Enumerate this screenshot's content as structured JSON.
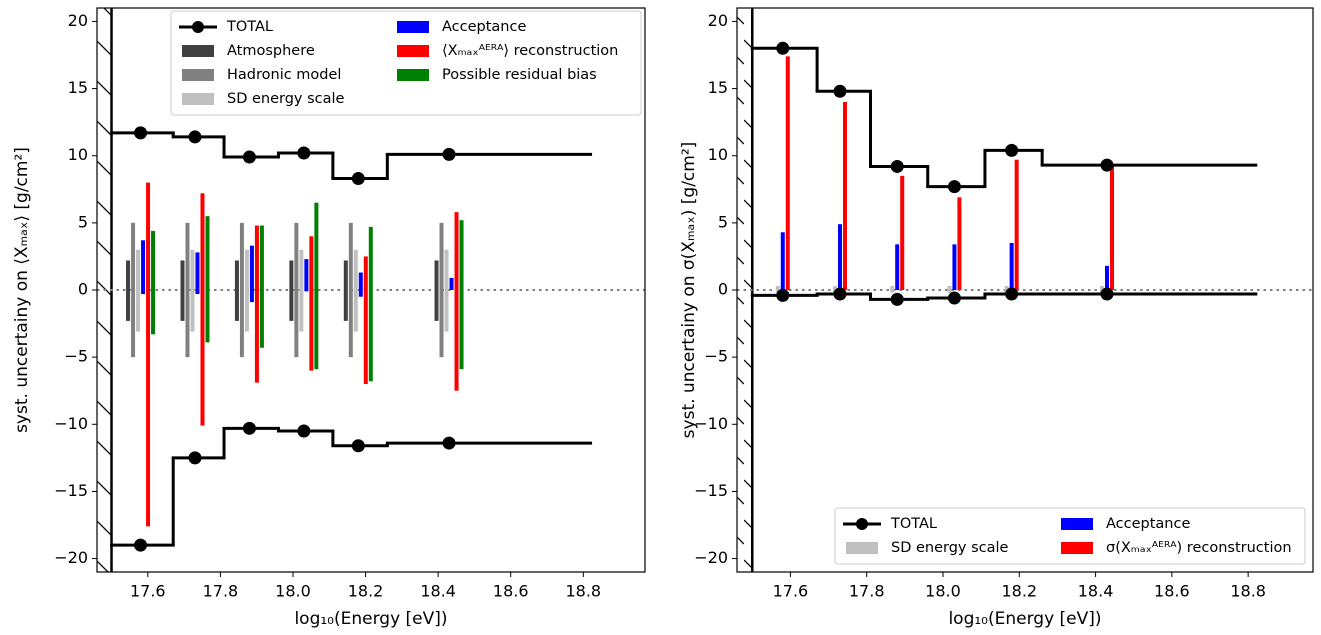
{
  "chart_data": [
    {
      "type": "step",
      "xlabel": "log₁₀(Energy [eV])",
      "ylabel": "syst. uncertainy on ⟨Xₘₐₓ⟩  [g/cm²]",
      "xlim": [
        17.46,
        18.97
      ],
      "ylim": [
        -21,
        21
      ],
      "xticks": [
        17.6,
        17.8,
        {
          "value": 18,
          "label": "18.0"
        },
        18.2,
        18.4,
        18.6,
        18.8
      ],
      "yticks": [
        {
          "value": -20,
          "label": "−20"
        },
        {
          "value": -15,
          "label": "−15"
        },
        {
          "value": -10,
          "label": "−10"
        },
        {
          "value": -5,
          "label": "−5"
        },
        0,
        5,
        10,
        15,
        20
      ],
      "x": [
        17.58,
        17.73,
        17.88,
        18.03,
        18.18,
        18.43
      ],
      "bins": [
        17.5,
        17.67,
        17.81,
        17.96,
        18.11,
        18.26,
        18.82
      ],
      "hatch_below_x": 17.5,
      "reference_y": 0,
      "legend": "upper center",
      "legend_columns": 2,
      "series": [
        {
          "name": "TOTAL",
          "kind": "line",
          "color": "#000000",
          "upper": [
            11.7,
            11.4,
            9.9,
            10.2,
            8.3,
            10.1
          ],
          "lower": [
            -19,
            -12.5,
            -10.3,
            -10.5,
            -11.6,
            -11.4
          ]
        },
        {
          "name": "Atmosphere",
          "kind": "bar",
          "color": "#404040",
          "upper": [
            2.2,
            2.2,
            2.2,
            2.2,
            2.2,
            2.2
          ],
          "lower": [
            -2.3,
            -2.3,
            -2.3,
            -2.3,
            -2.3,
            -2.3
          ]
        },
        {
          "name": "Hadronic model",
          "kind": "bar",
          "color": "#808080",
          "upper": [
            5,
            5,
            5,
            5,
            5,
            5
          ],
          "lower": [
            -5,
            -5,
            -5,
            -5,
            -5,
            -5
          ]
        },
        {
          "name": "SD energy scale",
          "kind": "bar",
          "color": "#c0c0c0",
          "upper": [
            3,
            3,
            3,
            3,
            3,
            3
          ],
          "lower": [
            -3.1,
            -3.1,
            -3.1,
            -3.1,
            -3.1,
            -3.1
          ]
        },
        {
          "name": "Acceptance",
          "kind": "bar",
          "color": "#0000ff",
          "upper": [
            3.7,
            2.8,
            3.3,
            2.3,
            1.3,
            0.9
          ],
          "lower": [
            -0.3,
            -0.3,
            -0.9,
            -0.1,
            -0.5,
            0
          ]
        },
        {
          "name": "⟨Xₘₐₓᴬᴱᴿᴬ⟩ reconstruction",
          "kind": "bar",
          "color": "#ff0000",
          "upper": [
            8,
            7.2,
            4.8,
            4,
            2.5,
            5.8
          ],
          "lower": [
            -17.6,
            -10.1,
            -6.9,
            -6,
            -7,
            -7.5
          ]
        },
        {
          "name": "Possible residual bias",
          "kind": "bar",
          "color": "#008000",
          "upper": [
            4.4,
            5.5,
            4.8,
            6.5,
            4.7,
            5.2
          ],
          "lower": [
            -3.3,
            -3.9,
            -4.3,
            -5.9,
            -6.8,
            -5.9
          ]
        }
      ]
    },
    {
      "type": "step",
      "xlabel": "log₁₀(Energy [eV])",
      "ylabel": "syst. uncertainy on σ(Xₘₐₓ)  [g/cm²]",
      "xlim": [
        17.46,
        18.97
      ],
      "ylim": [
        -21,
        21
      ],
      "xticks": [
        17.6,
        17.8,
        {
          "value": 18,
          "label": "18.0"
        },
        18.2,
        18.4,
        18.6,
        18.8
      ],
      "yticks": [
        {
          "value": -20,
          "label": "−20"
        },
        {
          "value": -15,
          "label": "−15"
        },
        {
          "value": -10,
          "label": "−10"
        },
        {
          "value": -5,
          "label": "−5"
        },
        0,
        5,
        10,
        15,
        20
      ],
      "x": [
        17.58,
        17.73,
        17.88,
        18.03,
        18.18,
        18.43
      ],
      "bins": [
        17.5,
        17.67,
        17.81,
        17.96,
        18.11,
        18.26,
        18.82
      ],
      "hatch_below_x": 17.5,
      "reference_y": 0,
      "legend": "lower right",
      "legend_columns": 2,
      "series": [
        {
          "name": "TOTAL",
          "kind": "line",
          "color": "#000000",
          "upper": [
            18,
            14.8,
            9.2,
            7.7,
            10.4,
            9.3
          ],
          "lower": [
            -0.4,
            -0.3,
            -0.7,
            -0.6,
            -0.3,
            -0.3
          ]
        },
        {
          "name": "SD energy scale",
          "kind": "bar",
          "color": "#c0c0c0",
          "upper": [
            0.3,
            0.3,
            0.3,
            0.3,
            0.3,
            0.3
          ],
          "lower": [
            -0.2,
            -0.2,
            -0.2,
            -0.2,
            -0.2,
            -0.2
          ]
        },
        {
          "name": "Acceptance",
          "kind": "bar",
          "color": "#0000ff",
          "upper": [
            4.3,
            4.9,
            3.4,
            3.4,
            3.5,
            1.8
          ],
          "lower": [
            0,
            0,
            0,
            0,
            0,
            0
          ]
        },
        {
          "name": "σ(Xₘₐₓᴬᴱᴿᴬ) reconstruction",
          "kind": "bar",
          "color": "#ff0000",
          "upper": [
            17.4,
            14,
            8.5,
            6.9,
            9.7,
            9.3
          ],
          "lower": [
            0,
            0,
            0,
            0,
            0,
            0
          ]
        }
      ]
    }
  ]
}
